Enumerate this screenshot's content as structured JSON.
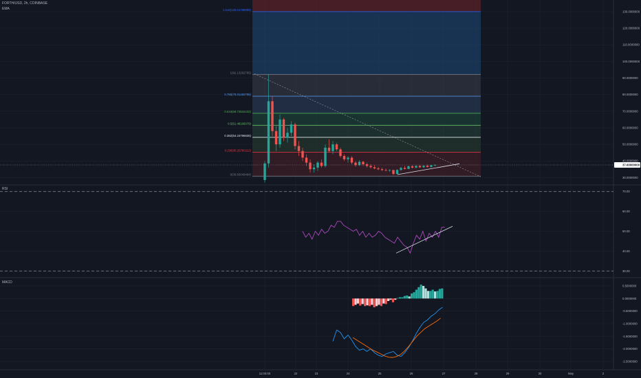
{
  "header": {
    "symbol_line": "FORTH/USD, 2h, COINBASE",
    "indicator": "EMA"
  },
  "panes": {
    "rsi_label": "RSI",
    "macd_label": "MACD"
  },
  "chart_data": [
    {
      "type": "candlestick",
      "pane": "price",
      "y_ticks": [
        "130.0000000",
        "120.0000000",
        "110.0000000",
        "100.0000000",
        "90.0000000",
        "80.0000000",
        "70.0000000",
        "60.0000000",
        "50.0000000",
        "40.0000000",
        "30.0000000"
      ],
      "y_tick_values": [
        130,
        120,
        110,
        100,
        90,
        80,
        70,
        60,
        50,
        40,
        30
      ],
      "ylim": [
        26,
        137
      ],
      "price_label": "37.60000000",
      "last_price": 37.6,
      "fib_levels": [
        {
          "label": "1.618(130.01788999)",
          "value": 130.01788999,
          "color": "#2962ff"
        },
        {
          "label": "1(92.13292795)",
          "value": 92.13292795,
          "color": "#787b86"
        },
        {
          "label": "0.786(79.01450795)",
          "value": 79.01450795,
          "color": "#5b9cf6"
        },
        {
          "label": "0.618(68.73534432)",
          "value": 68.73534432,
          "color": "#4caf50"
        },
        {
          "label": "0.5(61.48166079)",
          "value": 61.48166079,
          "color": "#66bb6a"
        },
        {
          "label": "0.382(54.24796926)",
          "value": 54.24796926,
          "color": "#e0e3eb"
        },
        {
          "label": "0.236(45.29780112)",
          "value": 45.29780112,
          "color": "#f23645"
        },
        {
          "label": "0(30.83040484)",
          "value": 30.83040484,
          "color": "#787b86"
        }
      ],
      "candles": [
        {
          "o": 28.5,
          "h": 40,
          "l": 27,
          "c": 38.5
        },
        {
          "o": 38.5,
          "h": 92,
          "l": 36,
          "c": 76
        },
        {
          "o": 76,
          "h": 79,
          "l": 55,
          "c": 58
        },
        {
          "o": 58,
          "h": 61,
          "l": 46,
          "c": 50
        },
        {
          "o": 50,
          "h": 68,
          "l": 48,
          "c": 65
        },
        {
          "o": 65,
          "h": 66,
          "l": 52,
          "c": 54
        },
        {
          "o": 54,
          "h": 60,
          "l": 51,
          "c": 57
        },
        {
          "o": 57,
          "h": 64,
          "l": 55,
          "c": 62
        },
        {
          "o": 62,
          "h": 63,
          "l": 47,
          "c": 49
        },
        {
          "o": 49,
          "h": 52,
          "l": 43,
          "c": 46
        },
        {
          "o": 46,
          "h": 48,
          "l": 40,
          "c": 42
        },
        {
          "o": 42,
          "h": 44,
          "l": 37,
          "c": 39
        },
        {
          "o": 39,
          "h": 41,
          "l": 33,
          "c": 35
        },
        {
          "o": 35,
          "h": 38,
          "l": 33,
          "c": 36
        },
        {
          "o": 36,
          "h": 40,
          "l": 34,
          "c": 39
        },
        {
          "o": 39,
          "h": 41,
          "l": 36,
          "c": 37
        },
        {
          "o": 37,
          "h": 50,
          "l": 36,
          "c": 48
        },
        {
          "o": 48,
          "h": 53,
          "l": 45,
          "c": 46
        },
        {
          "o": 46,
          "h": 52,
          "l": 44,
          "c": 50
        },
        {
          "o": 50,
          "h": 51,
          "l": 46,
          "c": 47
        },
        {
          "o": 47,
          "h": 48,
          "l": 42,
          "c": 43
        },
        {
          "o": 43,
          "h": 44,
          "l": 40,
          "c": 41
        },
        {
          "o": 41,
          "h": 43,
          "l": 39,
          "c": 42
        },
        {
          "o": 42,
          "h": 43,
          "l": 38,
          "c": 39
        },
        {
          "o": 39,
          "h": 40,
          "l": 36.5,
          "c": 37.5
        },
        {
          "o": 37.5,
          "h": 40.5,
          "l": 37,
          "c": 39.5
        },
        {
          "o": 39.5,
          "h": 40,
          "l": 37,
          "c": 38
        },
        {
          "o": 38,
          "h": 39,
          "l": 36,
          "c": 37
        },
        {
          "o": 37,
          "h": 38,
          "l": 35.5,
          "c": 36.2
        },
        {
          "o": 36.2,
          "h": 37.5,
          "l": 35,
          "c": 35.5
        },
        {
          "o": 35.5,
          "h": 36.5,
          "l": 34.5,
          "c": 35
        },
        {
          "o": 35,
          "h": 36,
          "l": 34,
          "c": 34.5
        },
        {
          "o": 34.5,
          "h": 35.5,
          "l": 33.8,
          "c": 34.2
        },
        {
          "o": 34.2,
          "h": 35,
          "l": 33.5,
          "c": 34.5
        },
        {
          "o": 34.5,
          "h": 34.8,
          "l": 31.5,
          "c": 32.2
        },
        {
          "o": 32.2,
          "h": 35,
          "l": 31.8,
          "c": 34.6
        },
        {
          "o": 34.6,
          "h": 36.5,
          "l": 34,
          "c": 35.8
        },
        {
          "o": 35.8,
          "h": 37,
          "l": 34.8,
          "c": 35.2
        },
        {
          "o": 35.2,
          "h": 37.2,
          "l": 35,
          "c": 36.8
        },
        {
          "o": 36.8,
          "h": 37.5,
          "l": 35.5,
          "c": 36
        },
        {
          "o": 36,
          "h": 37.4,
          "l": 35.6,
          "c": 37
        },
        {
          "o": 37,
          "h": 37.6,
          "l": 35.8,
          "c": 36.2
        },
        {
          "o": 36.2,
          "h": 37.4,
          "l": 35.8,
          "c": 37.1
        },
        {
          "o": 37.1,
          "h": 37.8,
          "l": 36,
          "c": 36.4
        },
        {
          "o": 36.4,
          "h": 37.6,
          "l": 36,
          "c": 37.4
        },
        {
          "o": 37.4,
          "h": 38,
          "l": 36.8,
          "c": 37.6
        }
      ]
    },
    {
      "type": "line",
      "pane": "rsi",
      "y_ticks": [
        "70.00",
        "60.00",
        "50.00",
        "40.00",
        "30.00"
      ],
      "y_tick_values": [
        70,
        60,
        50,
        40,
        30
      ],
      "ylim": [
        27,
        73
      ],
      "bands": [
        70,
        30
      ],
      "series": [
        {
          "values": [
            50,
            47,
            49,
            46,
            50,
            48,
            51,
            49,
            50,
            53,
            52,
            55,
            55,
            53,
            52,
            51,
            50,
            51,
            48,
            50,
            47,
            49,
            47,
            48,
            50,
            49,
            47,
            46,
            45,
            44,
            47,
            45,
            43,
            42,
            39,
            44,
            48,
            46,
            50,
            45,
            49,
            47,
            50,
            47,
            52,
            52
          ]
        }
      ]
    },
    {
      "type": "bar",
      "pane": "macd",
      "y_ticks": [
        "0.5000000",
        "0.0000000",
        "-0.5000000",
        "-1.0000000",
        "-1.5000000",
        "-2.0000000",
        "-2.5000000"
      ],
      "y_tick_values": [
        0.5,
        0,
        -0.5,
        -1,
        -1.5,
        -2,
        -2.5
      ],
      "ylim": [
        -2.8,
        0.8
      ],
      "histogram": [
        -0.3,
        -0.25,
        -0.2,
        -0.28,
        -0.22,
        -0.3,
        -0.27,
        -0.3,
        -0.25,
        -0.35,
        -0.3,
        -0.25,
        -0.3,
        -0.2,
        -0.22,
        -0.1,
        -0.05,
        -0.15,
        -0.05,
        0.02,
        0.05,
        0.05,
        0.1,
        0.12,
        0.08,
        0.2,
        0.25,
        0.35,
        0.45,
        0.55,
        0.5,
        0.4,
        0.3,
        0.3,
        0.35,
        0.28,
        0.3,
        0.38,
        0.4
      ],
      "series": [
        {
          "values": [
            -1.7,
            -1.25,
            -1.35,
            -1.6,
            -1.45,
            -1.65,
            -1.9,
            -2.05,
            -2.0,
            -2.1,
            -2.0,
            -2.15,
            -2.25,
            -2.3,
            -2.2,
            -2.15,
            -2.1,
            -2.25,
            -2.3,
            -2.15,
            -1.95,
            -1.7,
            -1.4,
            -1.15,
            -0.95,
            -0.85,
            -0.7,
            -0.6,
            -0.45,
            -0.35
          ]
        },
        {
          "values": [
            -1.55,
            -1.65,
            -1.75,
            -1.85,
            -1.95,
            -2.05,
            -2.12,
            -2.2,
            -2.28,
            -2.33,
            -2.34,
            -2.3,
            -2.22,
            -2.08,
            -1.9,
            -1.7,
            -1.5,
            -1.35,
            -1.2,
            -1.1,
            -1.0,
            -0.9,
            -0.78
          ]
        }
      ]
    }
  ],
  "time_axis": {
    "labels": [
      "11:00:00",
      "22",
      "23",
      "24",
      "25",
      "26",
      "27",
      "28",
      "29",
      "30",
      "May",
      "2"
    ]
  }
}
